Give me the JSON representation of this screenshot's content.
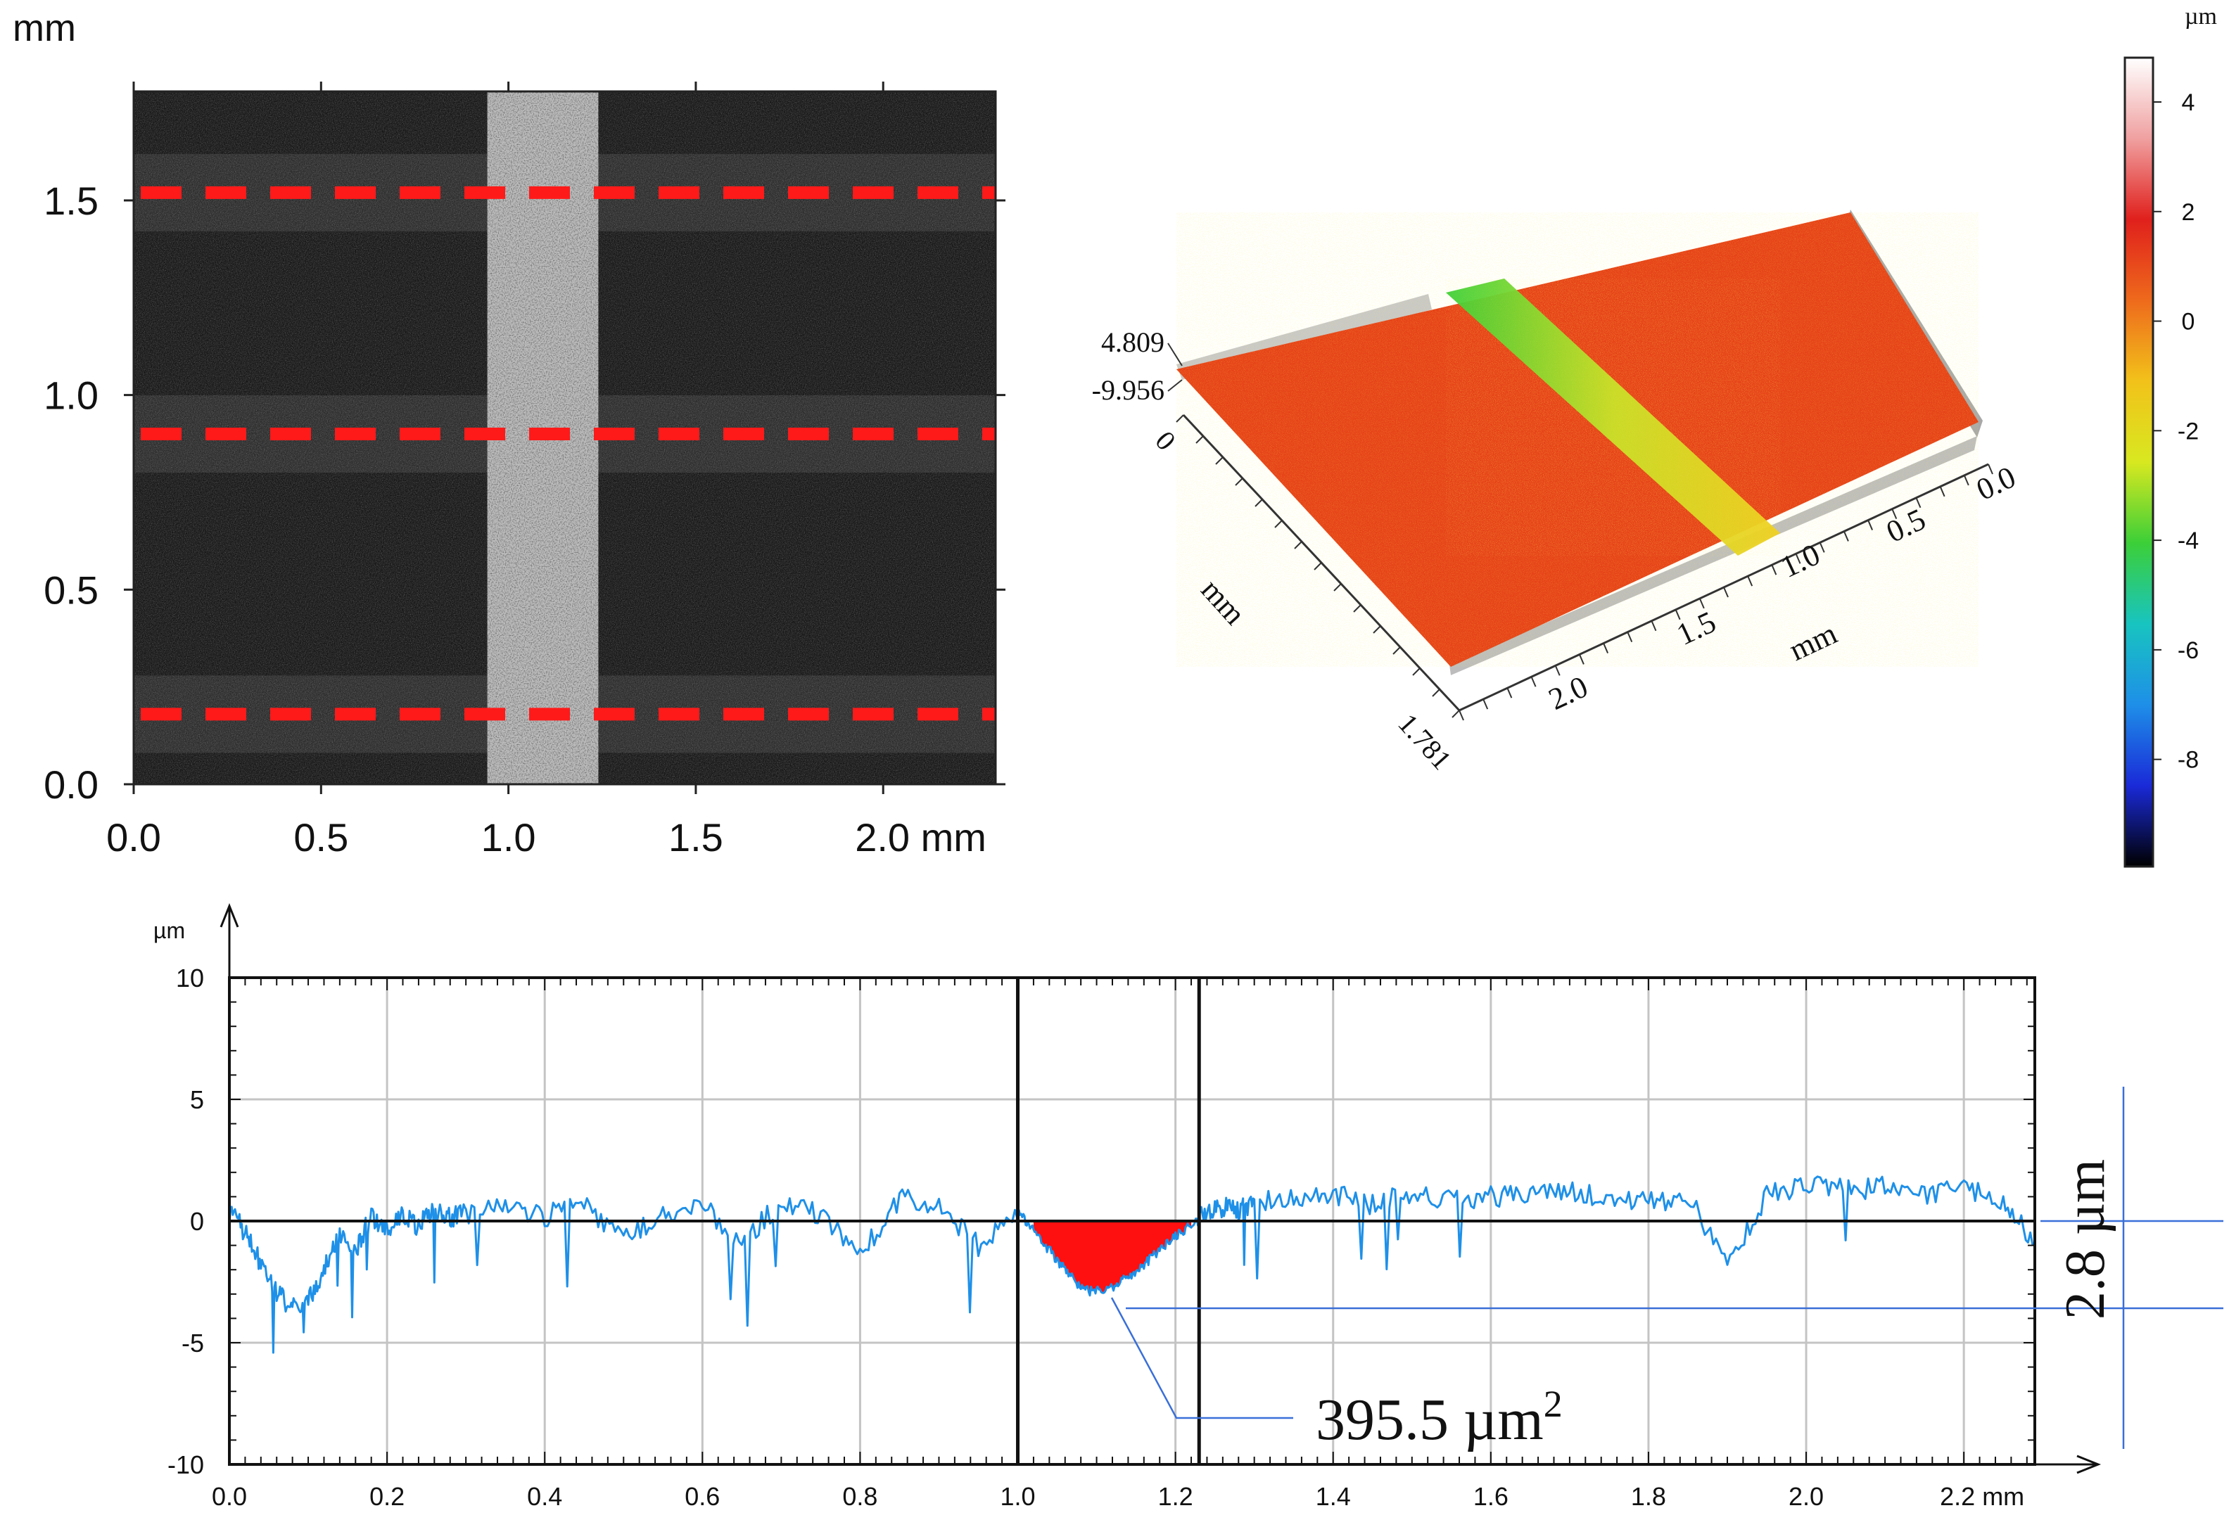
{
  "top_left": {
    "unit_label": "mm",
    "y_ticks": [
      "1.5",
      "1.0",
      "0.5",
      "0.0"
    ],
    "x_ticks": [
      "0.0",
      "0.5",
      "1.0",
      "1.5",
      "2.0 mm"
    ]
  },
  "top_right": {
    "z_max": "4.809",
    "z_min": "-9.956",
    "y_axis_start": "0",
    "y_axis_end": "1.781",
    "y_axis_label": "mm",
    "x_ticks": [
      "0.0",
      "0.5",
      "1.0",
      "1.5",
      "2.0"
    ],
    "x_axis_label": "mm"
  },
  "colorbar": {
    "unit": "µm",
    "ticks": [
      "4",
      "2",
      "0",
      "-2",
      "-4",
      "-6",
      "-8"
    ],
    "colors": [
      "#000000",
      "#1a2ad8",
      "#1e8fe8",
      "#18c4c0",
      "#3ccf38",
      "#d8e820",
      "#f2c21a",
      "#ee6a1c",
      "#e0201c",
      "#f0a0a0",
      "#ffffff"
    ]
  },
  "annotations": {
    "area": "395.5 µm",
    "area_sup": "2",
    "depth": "2.8 µm"
  },
  "chart_data": [
    {
      "type": "heatmap",
      "title": "",
      "xlabel": "mm",
      "ylabel": "mm",
      "xlim": [
        0,
        2.3
      ],
      "ylim": [
        0,
        1.78
      ],
      "x_ticks": [
        0.0,
        0.5,
        1.0,
        1.5,
        2.0
      ],
      "y_ticks": [
        0.0,
        0.5,
        1.0,
        1.5
      ],
      "profile_lines_y_mm": [
        1.52,
        0.9,
        0.18
      ],
      "scratch_x_mm": [
        1.0,
        1.24
      ]
    },
    {
      "type": "line",
      "title": "",
      "xlabel": "mm",
      "ylabel": "µm",
      "xlim": [
        0,
        2.29
      ],
      "ylim": [
        -10,
        10
      ],
      "x_ticks": [
        "0.0",
        "0.2",
        "0.4",
        "0.6",
        "0.8",
        "1.0",
        "1.2",
        "1.4",
        "1.6",
        "1.8",
        "2.0",
        "2.2 mm"
      ],
      "y_ticks": [
        "10",
        "5",
        "0",
        "-5",
        "-10"
      ],
      "y_unit": "µm",
      "cursor_x_mm": [
        1.0,
        1.23
      ],
      "series": [
        {
          "name": "profile",
          "color": "#1e90e8",
          "x": [
            0.0,
            0.02,
            0.04,
            0.06,
            0.08,
            0.1,
            0.12,
            0.14,
            0.16,
            0.18,
            0.2,
            0.22,
            0.24,
            0.26,
            0.28,
            0.3,
            0.35,
            0.4,
            0.45,
            0.5,
            0.55,
            0.6,
            0.65,
            0.7,
            0.75,
            0.8,
            0.85,
            0.9,
            0.95,
            1.0,
            1.02,
            1.04,
            1.06,
            1.08,
            1.1,
            1.12,
            1.14,
            1.16,
            1.18,
            1.2,
            1.22,
            1.24,
            1.26,
            1.28,
            1.3,
            1.35,
            1.4,
            1.45,
            1.5,
            1.55,
            1.6,
            1.65,
            1.7,
            1.75,
            1.8,
            1.85,
            1.9,
            1.95,
            2.0,
            2.05,
            2.1,
            2.15,
            2.2,
            2.25,
            2.29
          ],
          "values": [
            0.3,
            -0.4,
            -1.8,
            -3.0,
            -3.6,
            -3.2,
            -2.0,
            -0.5,
            -1.2,
            0.2,
            -0.3,
            0.3,
            -0.2,
            0.4,
            0.2,
            0.3,
            0.5,
            0.2,
            0.7,
            -0.8,
            0.4,
            0.6,
            -0.9,
            0.8,
            0.3,
            -1.4,
            0.9,
            0.6,
            -1.0,
            0.4,
            -0.4,
            -1.2,
            -2.0,
            -2.8,
            -2.9,
            -2.7,
            -2.3,
            -1.8,
            -1.2,
            -0.6,
            -0.2,
            0.3,
            0.6,
            0.4,
            0.8,
            0.9,
            1.1,
            0.7,
            1.2,
            0.8,
            1.0,
            1.1,
            1.2,
            0.9,
            0.8,
            1.0,
            -1.8,
            1.0,
            1.6,
            1.3,
            1.4,
            1.1,
            1.3,
            0.9,
            -0.9
          ]
        }
      ],
      "annotations": [
        "395.5 µm2",
        "2.8 µm"
      ]
    },
    {
      "type": "heatmap",
      "title": "",
      "colorbar_unit": "µm",
      "colorbar_range": [
        -9.956,
        4.809
      ],
      "colorbar_ticks": [
        4,
        2,
        0,
        -2,
        -4,
        -6,
        -8
      ]
    }
  ]
}
